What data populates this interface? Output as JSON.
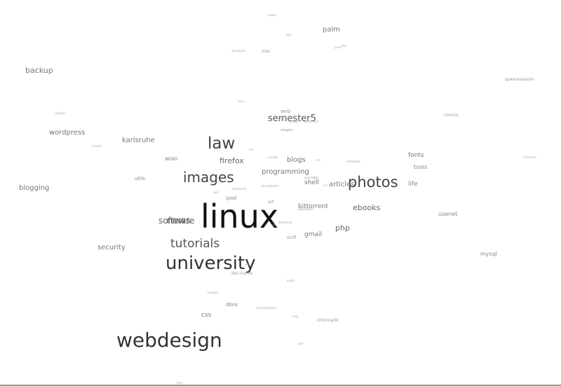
{
  "tags": [
    {
      "text": "linux",
      "weight": 1.0,
      "shade": "#111111"
    },
    {
      "text": "webdesign",
      "weight": 0.9,
      "shade": "#333333"
    },
    {
      "text": "university",
      "weight": 0.85,
      "shade": "#333333"
    },
    {
      "text": "photos",
      "weight": 0.82,
      "shade": "#444444"
    },
    {
      "text": "law",
      "weight": 0.8,
      "shade": "#444444"
    },
    {
      "text": "images",
      "weight": 0.78,
      "shade": "#444444"
    },
    {
      "text": "tutorials",
      "weight": 0.72,
      "shade": "#555555"
    },
    {
      "text": "semester5",
      "weight": 0.6,
      "shade": "#555555"
    },
    {
      "text": "news",
      "weight": 0.55,
      "shade": "#555555"
    },
    {
      "text": "software",
      "weight": 0.55,
      "shade": "#666666"
    },
    {
      "text": "php",
      "weight": 0.5,
      "shade": "#666666"
    },
    {
      "text": "ebooks",
      "weight": 0.48,
      "shade": "#666666"
    },
    {
      "text": "firefox",
      "weight": 0.48,
      "shade": "#666666"
    },
    {
      "text": "programming",
      "weight": 0.47,
      "shade": "#777777"
    },
    {
      "text": "security",
      "weight": 0.46,
      "shade": "#777777"
    },
    {
      "text": "backup",
      "weight": 0.46,
      "shade": "#777777"
    },
    {
      "text": "articles",
      "weight": 0.45,
      "shade": "#777777"
    },
    {
      "text": "blogs",
      "weight": 0.45,
      "shade": "#777777"
    },
    {
      "text": "wordpress",
      "weight": 0.44,
      "shade": "#777777"
    },
    {
      "text": "palm",
      "weight": 0.43,
      "shade": "#777777"
    },
    {
      "text": "karlsruhe",
      "weight": 0.42,
      "shade": "#777777"
    },
    {
      "text": "blogging",
      "weight": 0.42,
      "shade": "#777777"
    },
    {
      "text": "bittorrent",
      "weight": 0.42,
      "shade": "#777777"
    },
    {
      "text": "gmail",
      "weight": 0.42,
      "shade": "#777777"
    },
    {
      "text": "css",
      "weight": 0.41,
      "shade": "#777777"
    },
    {
      "text": "shell",
      "weight": 0.4,
      "shade": "#777777"
    },
    {
      "text": "fonts",
      "weight": 0.4,
      "shade": "#777777"
    },
    {
      "text": "life",
      "weight": 0.39,
      "shade": "#888888"
    },
    {
      "text": "wlan",
      "weight": 0.37,
      "shade": "#888888"
    },
    {
      "text": "usenet",
      "weight": 0.36,
      "shade": "#888888"
    },
    {
      "text": "mysql",
      "weight": 0.35,
      "shade": "#888888"
    },
    {
      "text": "tools",
      "weight": 0.35,
      "shade": "#888888"
    },
    {
      "text": "utils",
      "weight": 0.34,
      "shade": "#888888"
    },
    {
      "text": "ipod",
      "weight": 0.33,
      "shade": "#888888"
    },
    {
      "text": "dbox",
      "weight": 0.33,
      "shade": "#888888"
    },
    {
      "text": "art",
      "weight": 0.31,
      "shade": "#999999"
    },
    {
      "text": "stuff",
      "weight": 0.31,
      "shade": "#999999"
    },
    {
      "text": "informatik",
      "weight": 0.31,
      "shade": "#999999"
    },
    {
      "text": "web",
      "weight": 0.31,
      "shade": "#999999"
    },
    {
      "text": "mac",
      "weight": 0.3,
      "shade": "#999999"
    },
    {
      "text": "oregon",
      "weight": 0.3,
      "shade": "#999999"
    },
    {
      "text": "comics",
      "weight": 0.3,
      "shade": "#999999"
    },
    {
      "text": "spamassassin",
      "weight": 0.29,
      "shade": "#999999"
    },
    {
      "text": "del.icio.us",
      "weight": 0.29,
      "shade": "#999999"
    },
    {
      "text": "latex",
      "weight": 0.27,
      "shade": "#aaaaaa"
    },
    {
      "text": "templates",
      "weight": 0.26,
      "shade": "#aaaaaa"
    },
    {
      "text": "standards",
      "weight": 0.26,
      "shade": "#aaaaaa"
    },
    {
      "text": "mozilla",
      "weight": 0.25,
      "shade": "#aaaaaa"
    },
    {
      "text": "audio",
      "weight": 0.25,
      "shade": "#aaaaaa"
    },
    {
      "text": "license",
      "weight": 0.25,
      "shade": "#aaaaaa"
    },
    {
      "text": "java",
      "weight": 0.25,
      "shade": "#aaaaaa"
    },
    {
      "text": "python",
      "weight": 0.25,
      "shade": "#aaaaaa"
    },
    {
      "text": "knoppix",
      "weight": 0.25,
      "shade": "#aaaaaa"
    },
    {
      "text": "perl",
      "weight": 0.25,
      "shade": "#aaaaaa"
    },
    {
      "text": "help",
      "weight": 0.25,
      "shade": "#aaaaaa"
    },
    {
      "text": "howto",
      "weight": 0.24,
      "shade": "#aaaaaa"
    },
    {
      "text": "olpc",
      "weight": 0.24,
      "shade": "#aaaaaa"
    },
    {
      "text": "parteiderbasis",
      "weight": 0.24,
      "shade": "#aaaaaa"
    },
    {
      "text": "symbolism",
      "weight": 0.24,
      "shade": "#aaaaaa"
    },
    {
      "text": "thunderbird",
      "weight": 0.24,
      "shade": "#aaaaaa"
    },
    {
      "text": "podcasts",
      "weight": 0.24,
      "shade": "#aaaaaa"
    },
    {
      "text": "voip",
      "weight": 0.24,
      "shade": "#aaaaaa"
    },
    {
      "text": "sql",
      "weight": 0.23,
      "shade": "#aaaaaa"
    },
    {
      "text": "wiki",
      "weight": 0.23,
      "shade": "#aaaaaa"
    },
    {
      "text": "rss",
      "weight": 0.23,
      "shade": "#aaaaaa"
    },
    {
      "text": "tv",
      "weight": 0.23,
      "shade": "#aaaaaa"
    },
    {
      "text": "ssh",
      "weight": 0.23,
      "shade": "#aaaaaa"
    },
    {
      "text": "javascript",
      "weight": 0.23,
      "shade": "#aaaaaa"
    },
    {
      "text": "reference",
      "weight": 0.23,
      "shade": "#aaaaaa"
    },
    {
      "text": "gtd",
      "weight": 0.23,
      "shade": "#aaaaaa"
    },
    {
      "text": "vim",
      "weight": 0.23,
      "shade": "#aaaaaa"
    },
    {
      "text": "aggregator",
      "weight": 0.23,
      "shade": "#aaaaaa"
    },
    {
      "text": "download",
      "weight": 0.23,
      "shade": "#aaaaaa"
    },
    {
      "text": "design",
      "weight": 0.23,
      "shade": "#aaaaaa"
    },
    {
      "text": "cvs",
      "weight": 0.23,
      "shade": "#aaaaaa"
    },
    {
      "text": "pda",
      "weight": 0.23,
      "shade": "#aaaaaa"
    }
  ]
}
